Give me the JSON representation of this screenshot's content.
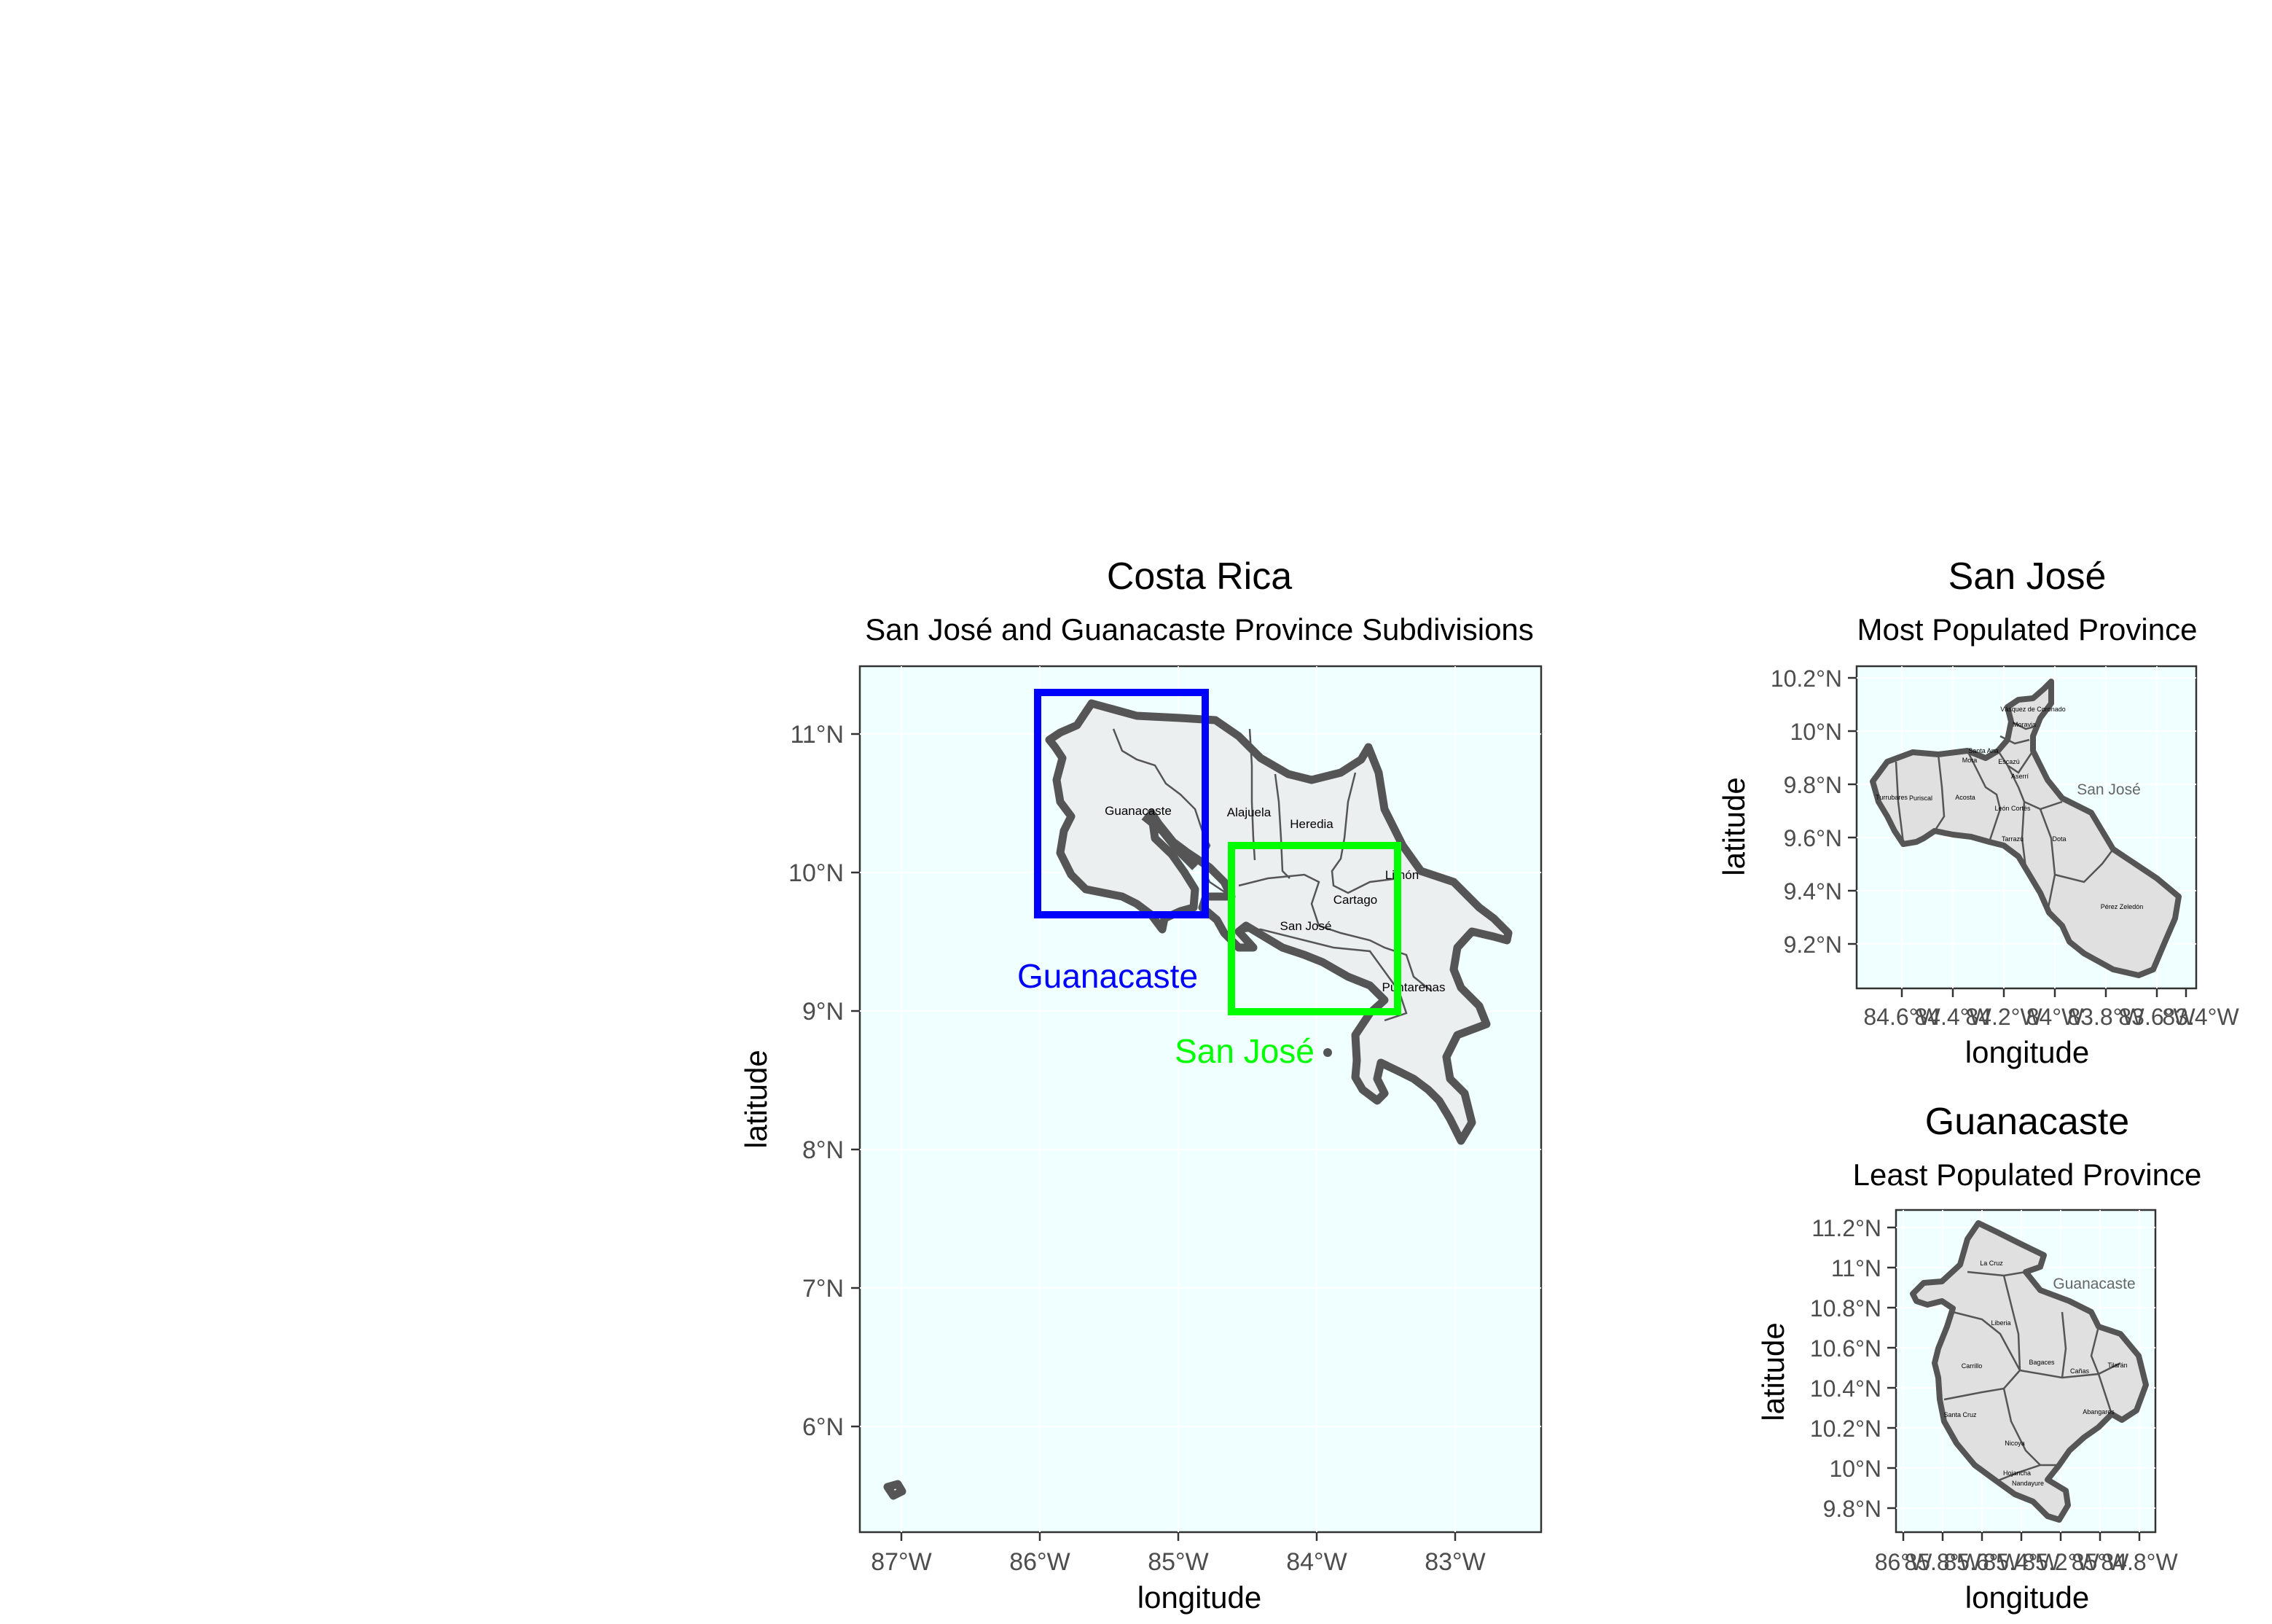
{
  "main_map": {
    "title": "Costa Rica",
    "subtitle": "San José and Guanacaste Province Subdivisions",
    "xlabel": "longitude",
    "ylabel": "latitude",
    "x_ticks": [
      "87°W",
      "86°W",
      "85°W",
      "84°W",
      "83°W"
    ],
    "y_ticks": [
      "11°N",
      "10°N",
      "9°N",
      "8°N",
      "7°N",
      "6°N"
    ],
    "province_labels": [
      "Guanacaste",
      "Alajuela",
      "Heredia",
      "Limón",
      "Cartago",
      "San José",
      "Puntarenas"
    ],
    "highlight_boxes": [
      {
        "label": "Guanacaste",
        "color": "#0000ff"
      },
      {
        "label": "San José",
        "color": "#00ff00"
      }
    ]
  },
  "san_jose_map": {
    "title": "San José",
    "subtitle": "Most Populated Province",
    "xlabel": "longitude",
    "ylabel": "latitude",
    "x_ticks": [
      "84.6°W",
      "84.4°W",
      "84.2°W",
      "84°W",
      "83.8°W",
      "83.6°W",
      "83.4°W"
    ],
    "y_ticks": [
      "10.2°N",
      "10°N",
      "9.8°N",
      "9.6°N",
      "9.4°N",
      "9.2°N"
    ],
    "province_label": "San José",
    "canton_labels": [
      "Vásquez de Coronado",
      "Moravia",
      "Santa Ana",
      "Mora",
      "Escazú",
      "Puriscal",
      "Acosta",
      "Turrubares",
      "Aserrí",
      "León Cortés",
      "Tarrazú",
      "Dota",
      "Pérez Zeledón"
    ]
  },
  "guanacaste_map": {
    "title": "Guanacaste",
    "subtitle": "Least Populated Province",
    "xlabel": "longitude",
    "ylabel": "latitude",
    "x_ticks": [
      "86°W",
      "85.8°W",
      "85.6°W",
      "85.4°W",
      "85.2°W",
      "85°W",
      "84.8°W"
    ],
    "y_ticks": [
      "11.2°N",
      "11°N",
      "10.8°N",
      "10.6°N",
      "10.4°N",
      "10.2°N",
      "10°N",
      "9.8°N"
    ],
    "province_label": "Guanacaste",
    "canton_labels": [
      "La Cruz",
      "Liberia",
      "Bagaces",
      "Cañas",
      "Tilarán",
      "Carrillo",
      "Abangares",
      "Santa Cruz",
      "Nicoya",
      "Hojancha",
      "Nandayure"
    ]
  },
  "colors": {
    "panel_background": "#f0ffff",
    "land_fill": "#eceff0",
    "border_stroke": "#555555",
    "guanacaste_box": "#0000ff",
    "san_jose_box": "#00ff00"
  }
}
